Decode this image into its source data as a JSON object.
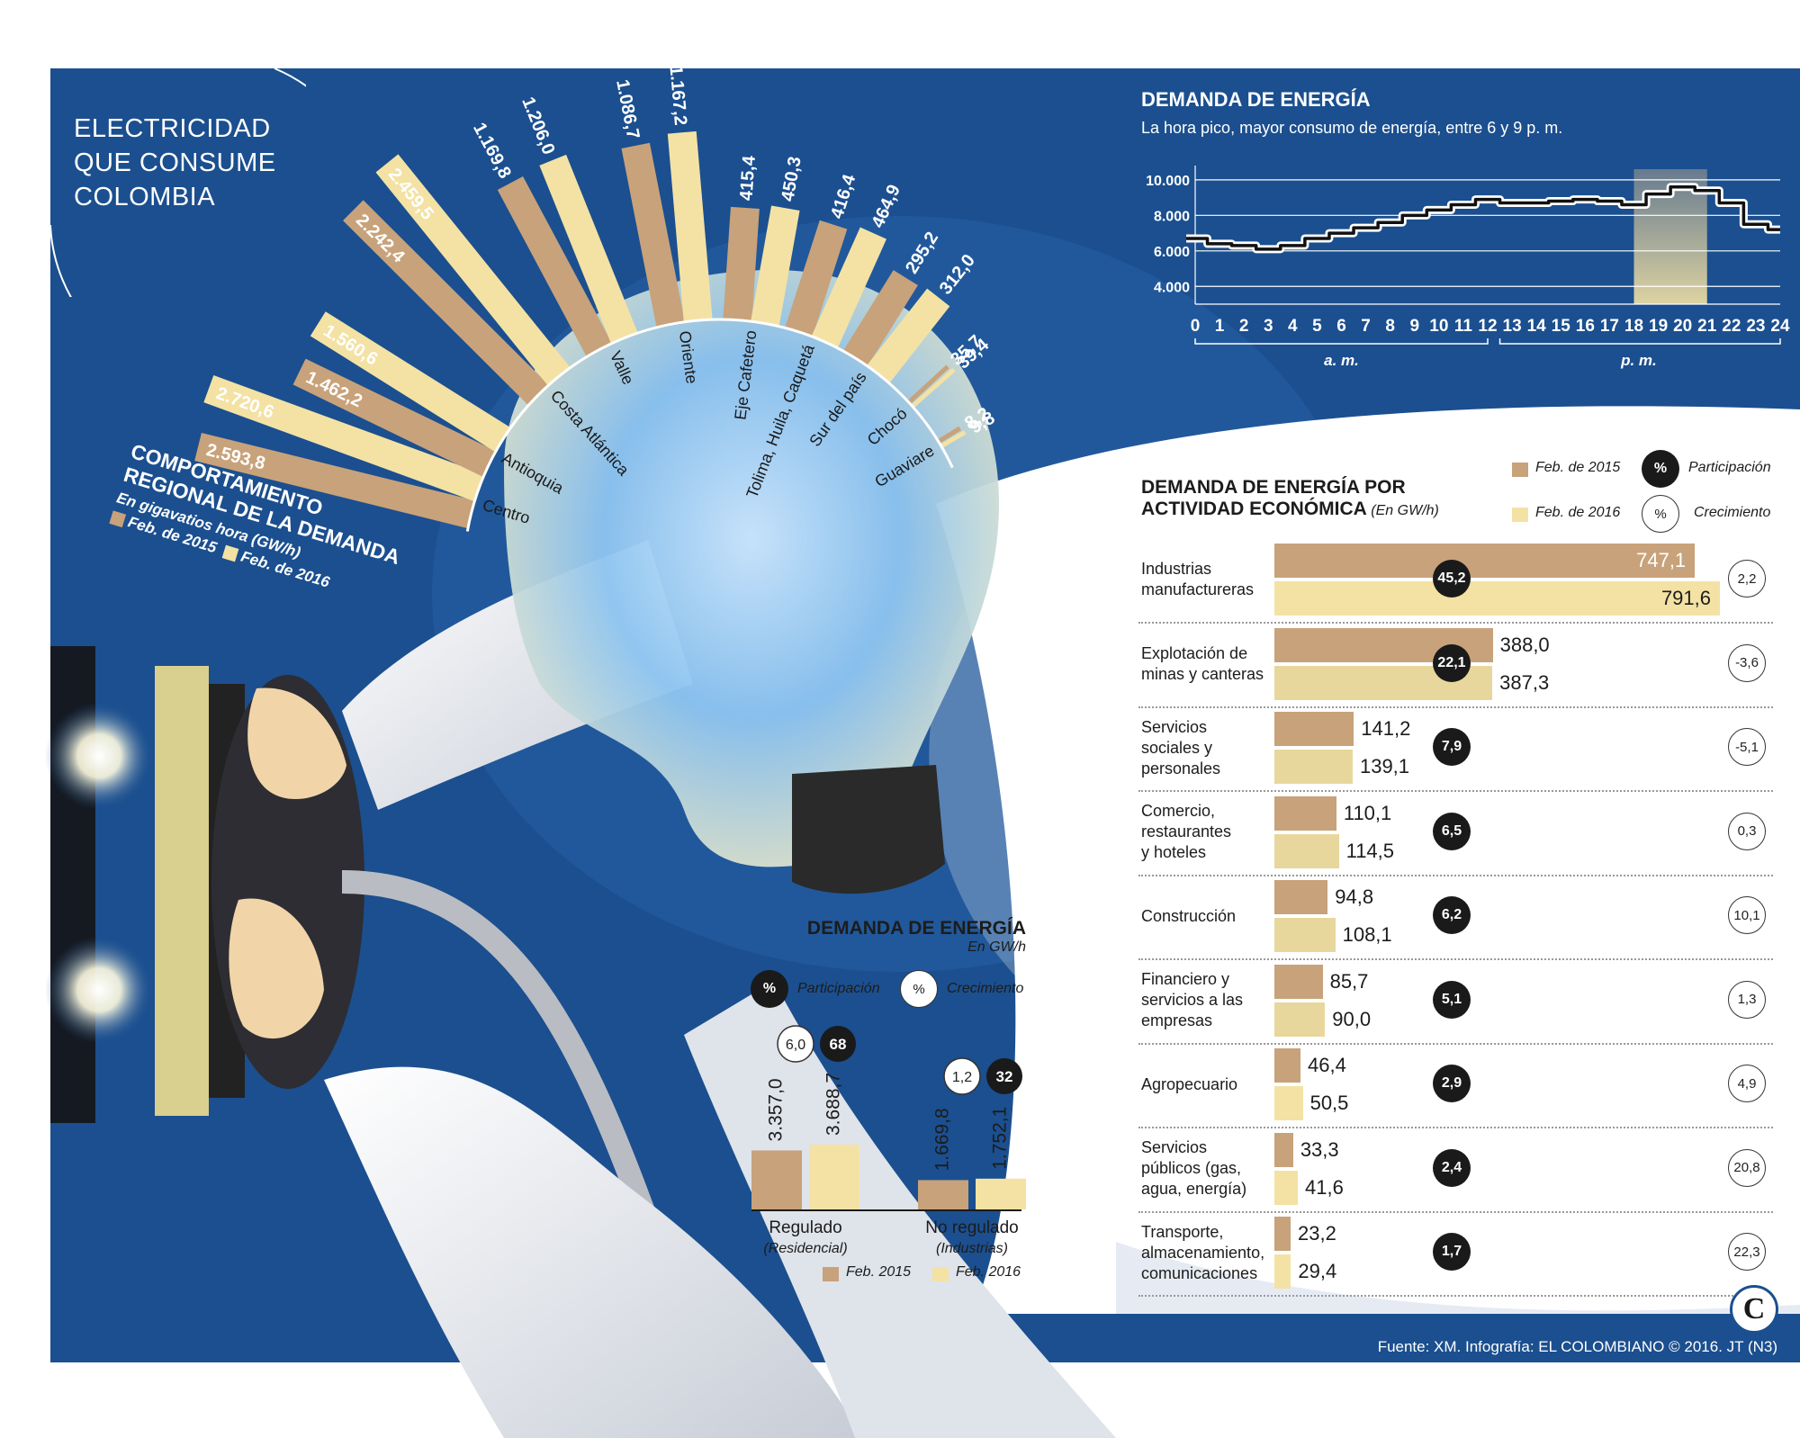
{
  "colors": {
    "navy": "#1b4f8f",
    "feb2015": "#c8a27a",
    "feb2016": "#f3e2a4",
    "badge": "#1a1a1a"
  },
  "main_title": [
    "ELECTRICIDAD",
    "QUE CONSUME",
    "COLOMBIA"
  ],
  "regional": {
    "title_line1": "COMPORTAMIENTO",
    "title_line2": "REGIONAL DE LA DEMANDA",
    "unit": "En gigavatios hora (GW/h)",
    "legend_2015": "Feb. de 2015",
    "legend_2016": "Feb. de 2016"
  },
  "hourly": {
    "title": "DEMANDA DE ENERGÍA",
    "subtitle": "La hora pico, mayor consumo de energía, entre 6 y 9 p. m.",
    "am_label": "a. m.",
    "pm_label": "p. m."
  },
  "sector": {
    "title_line1": "DEMANDA DE ENERGÍA POR",
    "title_line2": "ACTIVIDAD ECONÓMICA",
    "unit": "(En GW/h)",
    "legend_2015": "Feb. de 2015",
    "legend_2016": "Feb. de 2016",
    "legend_part": "Participación",
    "legend_crec": "Crecimiento",
    "pct_symbol": "%"
  },
  "market": {
    "title": "DEMANDA DE ENERGÍA",
    "unit": "En GW/h",
    "legend_part": "Participación",
    "legend_crec": "Crecimiento",
    "pct_symbol": "%",
    "legend_2015": "Feb. 2015",
    "legend_2016": "Feb. 2016"
  },
  "source": "Fuente: XM. Infografía: EL COLOMBIANO © 2016. JT (N3)",
  "logo_letter": "C",
  "chart_data": [
    {
      "type": "bar",
      "id": "regional",
      "title": "COMPORTAMIENTO REGIONAL DE LA DEMANDA",
      "unit": "GW/h",
      "categories": [
        "Centro",
        "Antioquia",
        "Costa Atlántica",
        "Valle",
        "Oriente",
        "Eje Cafetero",
        "Tolima, Huila, Caquetá",
        "Sur del país",
        "Chocó",
        "Guaviare"
      ],
      "series": [
        {
          "name": "Feb. de 2015",
          "values": [
            2593.8,
            1462.2,
            2242.4,
            1169.8,
            1086.7,
            415.4,
            416.4,
            295.2,
            35.7,
            8.2
          ],
          "labels": [
            "2.593,8",
            "1.462,2",
            "2.242,4",
            "1.169,8",
            "1.086,7",
            "415,4",
            "416,4",
            "295,2",
            "35,7",
            "8,2"
          ]
        },
        {
          "name": "Feb. de 2016",
          "values": [
            2720.6,
            1560.6,
            2459.5,
            1206.0,
            1167.2,
            450.3,
            464.9,
            312.0,
            39.4,
            9.8
          ],
          "labels": [
            "2.720,6",
            "1.560,6",
            "2.459,5",
            "1.206,0",
            "1.167,2",
            "450,3",
            "464,9",
            "312,0",
            "39,4",
            "9,8"
          ]
        }
      ]
    },
    {
      "type": "line",
      "id": "hourly",
      "title": "DEMANDA DE ENERGÍA",
      "x": [
        0,
        1,
        2,
        3,
        4,
        5,
        6,
        7,
        8,
        9,
        10,
        11,
        12,
        13,
        14,
        15,
        16,
        17,
        18,
        19,
        20,
        21,
        22,
        23,
        24
      ],
      "y": [
        6700,
        6400,
        6300,
        6100,
        6300,
        6700,
        7000,
        7300,
        7600,
        8000,
        8300,
        8600,
        8900,
        8700,
        8700,
        8800,
        8900,
        8800,
        8600,
        9200,
        9600,
        9400,
        8700,
        7500,
        7200
      ],
      "yticks": [
        4000,
        6000,
        8000,
        10000
      ],
      "ytick_labels": [
        "4.000",
        "6.000",
        "8.000",
        "10.000"
      ],
      "ylim": [
        3000,
        10500
      ],
      "xlim": [
        0,
        24
      ],
      "highlight": [
        18,
        21
      ],
      "grid": true
    },
    {
      "type": "bar",
      "id": "sector",
      "title": "DEMANDA DE ENERGÍA POR ACTIVIDAD ECONÓMICA",
      "unit": "GW/h",
      "categories": [
        [
          "Industrias",
          "manufactureras"
        ],
        [
          "Explotación de",
          "minas y canteras"
        ],
        [
          "Servicios",
          "sociales y",
          "personales"
        ],
        [
          "Comercio,",
          "restaurantes",
          "y hoteles"
        ],
        [
          "Construcción"
        ],
        [
          "Financiero y",
          "servicios a las",
          "empresas"
        ],
        [
          "Agropecuario"
        ],
        [
          "Servicios",
          "públicos (gas,",
          "agua, energía)"
        ],
        [
          "Transporte,",
          "almacenamiento,",
          "comunicaciones"
        ]
      ],
      "series": [
        {
          "name": "Feb. de 2015",
          "values": [
            747.1,
            388.0,
            141.2,
            110.1,
            94.8,
            85.7,
            46.4,
            33.3,
            23.2
          ],
          "labels": [
            "747,1",
            "388,0",
            "141,2",
            "110,1",
            "94,8",
            "85,7",
            "46,4",
            "33,3",
            "23,2"
          ]
        },
        {
          "name": "Feb. de 2016",
          "values": [
            791.6,
            387.3,
            139.1,
            114.5,
            108.1,
            90.0,
            50.5,
            41.6,
            29.4
          ],
          "labels": [
            "791,6",
            "387,3",
            "139,1",
            "114,5",
            "108,1",
            "90,0",
            "50,5",
            "41,6",
            "29,4"
          ]
        }
      ],
      "participacion": [
        "45,2",
        "22,1",
        "7,9",
        "6,5",
        "6,2",
        "5,1",
        "2,9",
        "2,4",
        "1,7"
      ],
      "crecimiento": [
        "2,2",
        "-3,6",
        "-5,1",
        "0,3",
        "10,1",
        "1,3",
        "4,9",
        "20,8",
        "22,3"
      ]
    },
    {
      "type": "bar",
      "id": "market",
      "title": "DEMANDA DE ENERGÍA",
      "unit": "GW/h",
      "categories": [
        {
          "name": "Regulado",
          "sub": "(Residencial)"
        },
        {
          "name": "No regulado",
          "sub": "(Industrias)"
        }
      ],
      "series": [
        {
          "name": "Feb. 2015",
          "values": [
            3357.0,
            1669.8
          ],
          "labels": [
            "3.357,0",
            "1.669,8"
          ]
        },
        {
          "name": "Feb. 2016",
          "values": [
            3688.7,
            1752.1
          ],
          "labels": [
            "3.688,7",
            "1.752,1"
          ]
        }
      ],
      "participacion": [
        "68",
        "32"
      ],
      "crecimiento": [
        "6,0",
        "1,2"
      ]
    }
  ]
}
